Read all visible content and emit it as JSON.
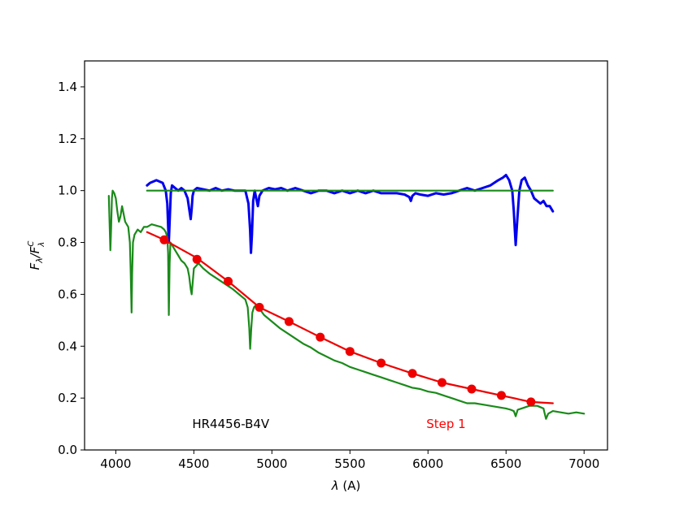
{
  "chart_data": {
    "type": "line",
    "xlabel": "λ (A)",
    "ylabel_main": "F",
    "ylabel_sub": "λ",
    "ylabel_sep": "/F",
    "ylabel_sup2": "C",
    "ylabel_sub2": "λ",
    "xlim": [
      3800,
      7150
    ],
    "ylim": [
      0.0,
      1.5
    ],
    "xticks": [
      4000,
      4500,
      5000,
      5500,
      6000,
      6500,
      7000
    ],
    "yticks": [
      0.0,
      0.2,
      0.4,
      0.6,
      0.8,
      1.0,
      1.2,
      1.4
    ],
    "grid": false,
    "annotations": [
      {
        "text": "HR4456-B4V",
        "x": 4500,
        "y": 0.1,
        "color": "#000000"
      },
      {
        "text": "Step 1",
        "x": 6000,
        "y": 0.1,
        "color": "#ff0000"
      }
    ],
    "series": [
      {
        "kind": "line",
        "color": "#0000ee",
        "width": 3,
        "x": [
          4200,
          4220,
          4240,
          4260,
          4280,
          4300,
          4320,
          4330,
          4336,
          4340,
          4345,
          4352,
          4360,
          4380,
          4400,
          4420,
          4440,
          4460,
          4470,
          4480,
          4486,
          4492,
          4500,
          4520,
          4560,
          4600,
          4640,
          4680,
          4720,
          4760,
          4800,
          4830,
          4850,
          4860,
          4866,
          4872,
          4880,
          4890,
          4900,
          4910,
          4920,
          4940,
          4980,
          5020,
          5060,
          5100,
          5150,
          5200,
          5250,
          5300,
          5350,
          5400,
          5450,
          5500,
          5550,
          5600,
          5650,
          5700,
          5750,
          5800,
          5850,
          5880,
          5890,
          5900,
          5920,
          5950,
          6000,
          6050,
          6100,
          6150,
          6200,
          6250,
          6300,
          6350,
          6400,
          6450,
          6480,
          6500,
          6520,
          6540,
          6550,
          6556,
          6562,
          6570,
          6585,
          6600,
          6620,
          6640,
          6660,
          6680,
          6700,
          6720,
          6740,
          6760,
          6780,
          6800
        ],
        "y": [
          1.02,
          1.03,
          1.035,
          1.04,
          1.035,
          1.03,
          1.0,
          0.95,
          0.85,
          0.8,
          0.88,
          0.99,
          1.02,
          1.01,
          1.0,
          1.01,
          1.0,
          0.97,
          0.93,
          0.89,
          0.93,
          0.98,
          1.0,
          1.01,
          1.005,
          1.0,
          1.01,
          1.0,
          1.005,
          1.0,
          1.0,
          1.0,
          0.95,
          0.85,
          0.76,
          0.83,
          0.96,
          1.0,
          0.97,
          0.94,
          0.98,
          1.0,
          1.01,
          1.005,
          1.01,
          1.0,
          1.01,
          1.0,
          0.99,
          1.0,
          1.0,
          0.99,
          1.0,
          0.99,
          1.0,
          0.99,
          1.0,
          0.99,
          0.99,
          0.99,
          0.985,
          0.975,
          0.96,
          0.98,
          0.99,
          0.985,
          0.98,
          0.99,
          0.985,
          0.99,
          1.0,
          1.01,
          1.0,
          1.01,
          1.02,
          1.04,
          1.05,
          1.06,
          1.04,
          1.0,
          0.92,
          0.85,
          0.79,
          0.87,
          1.0,
          1.04,
          1.05,
          1.02,
          1.0,
          0.97,
          0.96,
          0.95,
          0.96,
          0.94,
          0.94,
          0.92
        ]
      },
      {
        "kind": "line",
        "color": "#1a8a1a",
        "width": 2.2,
        "x": [
          3955,
          3960,
          3965,
          3970,
          3975,
          3980,
          3990,
          4000,
          4010,
          4020,
          4030,
          4040,
          4050,
          4060,
          4080,
          4090,
          4095,
          4101,
          4105,
          4110,
          4120,
          4140,
          4160,
          4180,
          4200,
          4230,
          4260,
          4290,
          4310,
          4320,
          4330,
          4335,
          4340,
          4345,
          4350,
          4360,
          4380,
          4400,
          4420,
          4440,
          4460,
          4470,
          4480,
          4486,
          4492,
          4500,
          4530,
          4560,
          4600,
          4650,
          4700,
          4750,
          4800,
          4830,
          4845,
          4855,
          4861,
          4868,
          4875,
          4885,
          4900,
          4920,
          4950,
          5000,
          5050,
          5100,
          5150,
          5200,
          5250,
          5300,
          5350,
          5400,
          5450,
          5500,
          5550,
          5600,
          5650,
          5700,
          5750,
          5800,
          5850,
          5900,
          5950,
          6000,
          6050,
          6100,
          6150,
          6200,
          6250,
          6300,
          6350,
          6400,
          6450,
          6500,
          6530,
          6550,
          6562,
          6575,
          6600,
          6650,
          6700,
          6720,
          6740,
          6748,
          6756,
          6770,
          6800,
          6850,
          6900,
          6950,
          7000
        ],
        "y": [
          0.98,
          0.88,
          0.77,
          0.85,
          0.97,
          1.0,
          0.99,
          0.97,
          0.92,
          0.88,
          0.9,
          0.94,
          0.91,
          0.88,
          0.86,
          0.8,
          0.7,
          0.53,
          0.68,
          0.8,
          0.83,
          0.85,
          0.84,
          0.86,
          0.86,
          0.87,
          0.865,
          0.86,
          0.85,
          0.84,
          0.82,
          0.76,
          0.52,
          0.72,
          0.8,
          0.79,
          0.77,
          0.75,
          0.73,
          0.72,
          0.7,
          0.67,
          0.62,
          0.6,
          0.64,
          0.7,
          0.72,
          0.7,
          0.68,
          0.66,
          0.64,
          0.62,
          0.595,
          0.58,
          0.55,
          0.47,
          0.39,
          0.47,
          0.53,
          0.55,
          0.56,
          0.545,
          0.52,
          0.495,
          0.47,
          0.45,
          0.43,
          0.41,
          0.395,
          0.375,
          0.36,
          0.345,
          0.335,
          0.32,
          0.31,
          0.3,
          0.29,
          0.28,
          0.27,
          0.26,
          0.25,
          0.24,
          0.235,
          0.225,
          0.22,
          0.21,
          0.2,
          0.19,
          0.18,
          0.18,
          0.175,
          0.17,
          0.165,
          0.16,
          0.155,
          0.15,
          0.13,
          0.155,
          0.16,
          0.17,
          0.17,
          0.165,
          0.16,
          0.14,
          0.12,
          0.14,
          0.15,
          0.145,
          0.14,
          0.145,
          0.14
        ]
      },
      {
        "kind": "line",
        "color": "#1a8a1a",
        "width": 2.2,
        "x": [
          4200,
          6800
        ],
        "y": [
          1.0,
          1.0
        ]
      },
      {
        "kind": "line",
        "color": "#ee0000",
        "width": 2.2,
        "x": [
          4200,
          4310,
          4520,
          4720,
          4920,
          5110,
          5310,
          5500,
          5700,
          5900,
          6090,
          6280,
          6470,
          6660,
          6800
        ],
        "y": [
          0.84,
          0.81,
          0.74,
          0.65,
          0.55,
          0.495,
          0.435,
          0.38,
          0.335,
          0.295,
          0.26,
          0.235,
          0.21,
          0.185,
          0.18
        ]
      },
      {
        "kind": "scatter",
        "color": "#ee0000",
        "radius": 5.5,
        "x": [
          4310,
          4520,
          4720,
          4920,
          5110,
          5310,
          5500,
          5700,
          5900,
          6090,
          6280,
          6470,
          6660
        ],
        "y": [
          0.81,
          0.735,
          0.65,
          0.55,
          0.495,
          0.435,
          0.38,
          0.335,
          0.295,
          0.26,
          0.235,
          0.21,
          0.185
        ]
      }
    ]
  }
}
